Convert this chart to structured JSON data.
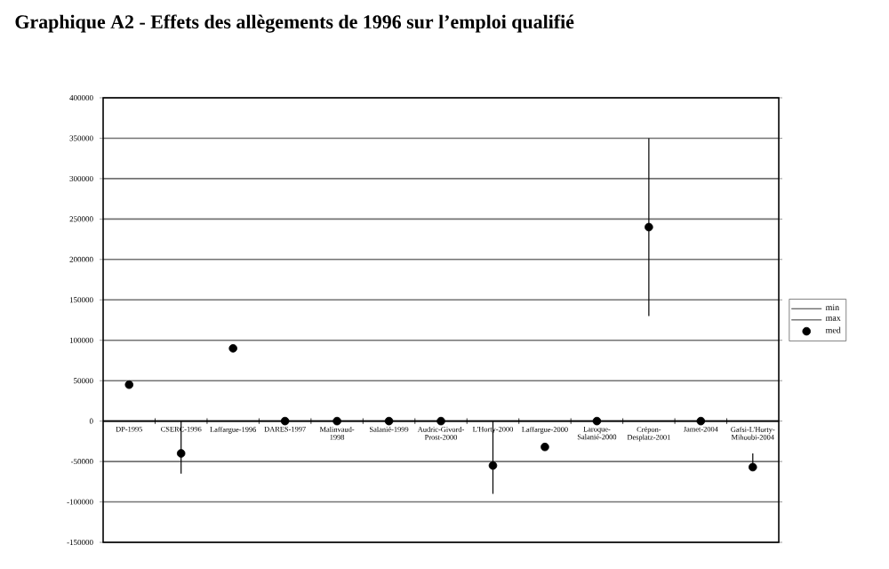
{
  "chart_data": {
    "type": "scatter",
    "title": "Graphique A2 - Effets des allègements de 1996 sur l’emploi qualifié",
    "categories": [
      "DP-1995",
      "CSERC-1996",
      "Laffargue-1996",
      "DARES-1997",
      "Malinvaud-1998",
      "Salanié-1999",
      "Audric-Givord-Prost-2000",
      "L'Horty-2000",
      "Laffargue-2000",
      "Laroque-Salanié-2000",
      "Crépon-Desplatz-2001",
      "Jamet-2004",
      "Gafsi-L'Horty-Mihoubi-2004"
    ],
    "series": [
      {
        "name": "min",
        "color": "#000000",
        "marker": "none",
        "values": [
          null,
          null,
          null,
          null,
          null,
          null,
          null,
          null,
          null,
          null,
          null,
          null,
          null
        ]
      },
      {
        "name": "max",
        "color": "#000000",
        "marker": "none",
        "values": [
          null,
          null,
          null,
          null,
          null,
          null,
          null,
          null,
          null,
          null,
          null,
          null,
          null
        ]
      },
      {
        "name": "med",
        "color": "#000000",
        "marker": "circle",
        "values": [
          45000,
          -40000,
          90000,
          0,
          0,
          0,
          0,
          -55000,
          -32000,
          0,
          240000,
          0,
          -57000
        ],
        "errors": [
          null,
          [
            -65000,
            0
          ],
          null,
          null,
          null,
          null,
          null,
          [
            -90000,
            0
          ],
          null,
          null,
          [
            130000,
            350000
          ],
          null,
          [
            -60000,
            -40000
          ]
        ]
      }
    ],
    "ylim": [
      -150000,
      400000
    ],
    "yticks": [
      -150000,
      -100000,
      -50000,
      0,
      50000,
      100000,
      150000,
      200000,
      250000,
      300000,
      350000,
      400000
    ],
    "grid": "y",
    "legend": "right"
  }
}
